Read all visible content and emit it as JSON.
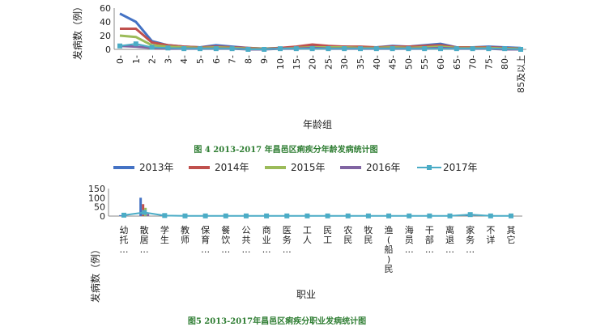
{
  "colors": {
    "s2013": "#4472c4",
    "s2014": "#c0504d",
    "s2015": "#9bbb59",
    "s2016": "#8064a2",
    "s2017": "#4bacc6"
  },
  "chart_data": [
    {
      "type": "line",
      "ylabel": "发病数（例）",
      "xlabel": "年龄组",
      "caption": "图  4 2013-2017 年昌邑区痢疾分年龄发病统计图",
      "ylim": [
        0,
        60
      ],
      "yticks": [
        "0",
        "20",
        "40",
        "60"
      ],
      "categories": [
        "0-",
        "1-",
        "2-",
        "3-",
        "4-",
        "5-",
        "6-",
        "7-",
        "8-",
        "9-",
        "10-",
        "15-",
        "20-",
        "25-",
        "30-",
        "35-",
        "40-",
        "45-",
        "50-",
        "55-",
        "60-",
        "65-",
        "70-",
        "75-",
        "80-",
        "85及以上"
      ],
      "series": [
        {
          "name": "2013年",
          "values": [
            52,
            40,
            12,
            6,
            4,
            3,
            6,
            4,
            2,
            1,
            2,
            3,
            5,
            4,
            4,
            3,
            3,
            5,
            4,
            6,
            8,
            3,
            3,
            4,
            3,
            2
          ]
        },
        {
          "name": "2014年",
          "values": [
            30,
            30,
            10,
            6,
            4,
            3,
            4,
            3,
            2,
            1,
            2,
            4,
            7,
            5,
            4,
            4,
            3,
            4,
            4,
            5,
            6,
            3,
            3,
            3,
            2,
            1
          ]
        },
        {
          "name": "2015年",
          "values": [
            20,
            18,
            6,
            4,
            3,
            2,
            3,
            2,
            1,
            1,
            1,
            2,
            3,
            3,
            3,
            2,
            2,
            3,
            2,
            3,
            4,
            2,
            2,
            2,
            1,
            1
          ]
        },
        {
          "name": "2016年",
          "values": [
            5,
            4,
            2,
            1,
            1,
            1,
            1,
            1,
            0,
            0,
            1,
            1,
            2,
            1,
            1,
            1,
            1,
            1,
            1,
            1,
            2,
            1,
            1,
            1,
            0,
            0
          ]
        },
        {
          "name": "2017年",
          "values": [
            5,
            8,
            3,
            2,
            1,
            1,
            1,
            1,
            0,
            0,
            1,
            1,
            1,
            1,
            1,
            1,
            1,
            1,
            1,
            1,
            1,
            1,
            1,
            1,
            1,
            0
          ]
        }
      ]
    },
    {
      "type": "bar+line",
      "ylabel": "发病数（例）",
      "xlabel": "职业",
      "caption": "图5 2013-2017年昌邑区痢疾分职业发病统计图",
      "ylim": [
        0,
        150
      ],
      "yticks": [
        "0",
        "50",
        "100",
        "150"
      ],
      "legend": [
        "2013年",
        "2014年",
        "2015年",
        "2016年",
        "2017年"
      ],
      "categories": [
        "幼托…",
        "散居…",
        "学生",
        "教师",
        "保育…",
        "餐饮…",
        "公共…",
        "商业…",
        "医务…",
        "工人",
        "民工",
        "农民",
        "牧民",
        "渔(船)民",
        "海员…",
        "干部…",
        "离退…",
        "家务…",
        "不详",
        "其它"
      ],
      "series": [
        {
          "name": "2013年",
          "values": [
            5,
            100,
            3,
            1,
            1,
            1,
            0,
            1,
            1,
            1,
            0,
            1,
            0,
            0,
            0,
            1,
            1,
            5,
            1,
            0
          ]
        },
        {
          "name": "2014年",
          "values": [
            3,
            65,
            2,
            1,
            0,
            1,
            0,
            1,
            0,
            1,
            0,
            1,
            0,
            0,
            0,
            0,
            1,
            4,
            1,
            0
          ]
        },
        {
          "name": "2015年",
          "values": [
            2,
            45,
            2,
            0,
            0,
            0,
            0,
            0,
            0,
            0,
            0,
            1,
            0,
            0,
            0,
            0,
            0,
            3,
            0,
            0
          ]
        },
        {
          "name": "2016年",
          "values": [
            1,
            12,
            1,
            0,
            0,
            0,
            0,
            0,
            0,
            0,
            0,
            0,
            0,
            0,
            0,
            0,
            0,
            1,
            0,
            0
          ]
        },
        {
          "name": "2017年",
          "values": [
            5,
            20,
            3,
            1,
            1,
            1,
            1,
            1,
            1,
            1,
            1,
            1,
            1,
            1,
            1,
            1,
            1,
            8,
            1,
            1
          ]
        }
      ]
    }
  ]
}
